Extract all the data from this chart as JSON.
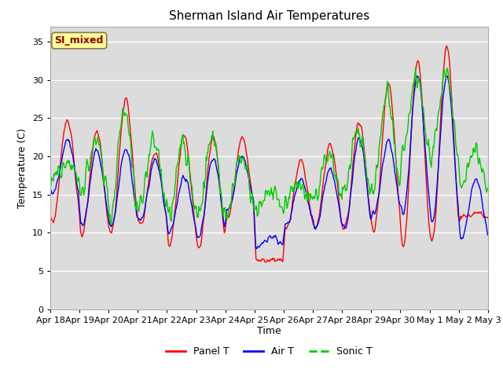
{
  "title": "Sherman Island Air Temperatures",
  "xlabel": "Time",
  "ylabel": "Temperature (C)",
  "ylim": [
    0,
    37
  ],
  "yticks": [
    0,
    5,
    10,
    15,
    20,
    25,
    30,
    35
  ],
  "x_labels": [
    "Apr 18",
    "Apr 19",
    "Apr 20",
    "Apr 21",
    "Apr 22",
    "Apr 23",
    "Apr 24",
    "Apr 25",
    "Apr 26",
    "Apr 27",
    "Apr 28",
    "Apr 29",
    "Apr 30",
    "May 1",
    "May 2",
    "May 3"
  ],
  "annotation_text": "SI_mixed",
  "annotation_color": "#8B0000",
  "annotation_bg": "#FFFF99",
  "bg_color": "#DCDCDC",
  "line_colors": {
    "panel": "#FF0000",
    "air": "#0000FF",
    "sonic": "#00CC00"
  },
  "legend_labels": [
    "Panel T",
    "Air T",
    "Sonic T"
  ],
  "figsize": [
    6.4,
    4.8
  ],
  "dpi": 100
}
